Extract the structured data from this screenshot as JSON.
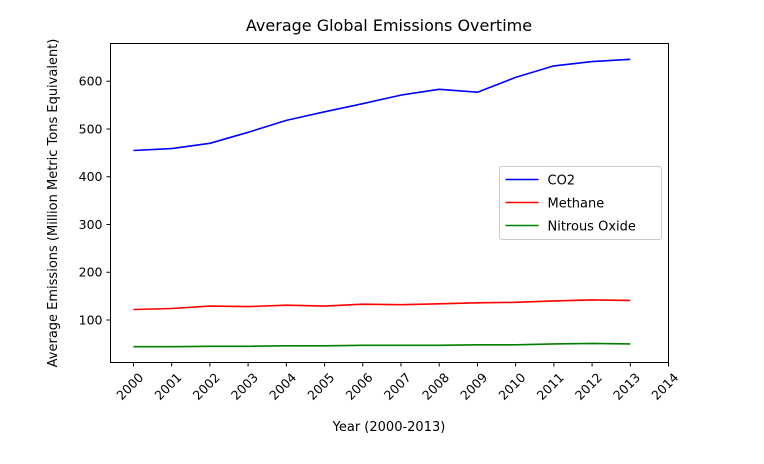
{
  "chart_data": {
    "type": "line",
    "title": "Average Global Emissions Overtime",
    "xlabel": "Year (2000-2013)",
    "ylabel": "Average Emissions (Million Metric Tons Equivalent)",
    "x": [
      2000,
      2001,
      2002,
      2003,
      2004,
      2005,
      2006,
      2007,
      2008,
      2009,
      2010,
      2011,
      2012,
      2013
    ],
    "xticks": [
      2000,
      2001,
      2002,
      2003,
      2004,
      2005,
      2006,
      2007,
      2008,
      2009,
      2010,
      2011,
      2012,
      2013,
      2014
    ],
    "yticks": [
      100,
      200,
      300,
      400,
      500,
      600
    ],
    "xlim": [
      1999.4,
      2014
    ],
    "ylim": [
      11,
      679
    ],
    "grid": false,
    "legend_position": "center-right",
    "series": [
      {
        "name": "CO2",
        "color": "#0000ff",
        "values": [
          455,
          459,
          470,
          493,
          518,
          536,
          553,
          571,
          583,
          577,
          608,
          632,
          641,
          646
        ]
      },
      {
        "name": "Methane",
        "color": "#ff0000",
        "values": [
          122,
          124,
          129,
          128,
          131,
          129,
          133,
          132,
          134,
          136,
          137,
          140,
          142,
          141
        ]
      },
      {
        "name": "Nitrous Oxide",
        "color": "#008000",
        "values": [
          44,
          44,
          45,
          45,
          46,
          46,
          47,
          47,
          47,
          48,
          48,
          50,
          51,
          50
        ]
      }
    ]
  }
}
